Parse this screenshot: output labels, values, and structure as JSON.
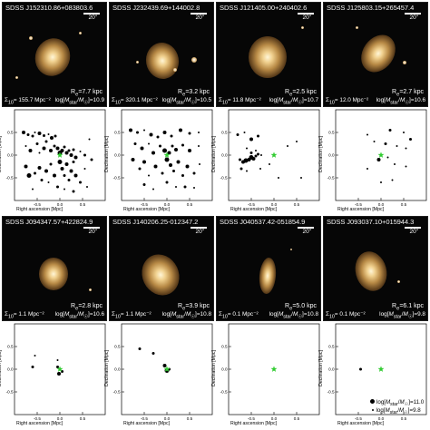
{
  "panels": [
    {
      "title": "SDSS J152310.86+083803.6",
      "scale": "20\"",
      "re": "R_e=7.7 kpc",
      "sigma": "Σ_10= 155.7 Mpc⁻²",
      "mass": "log[M_star/M_sun]=10.9",
      "neighbors": [
        [
          -0.8,
          0.5,
          2
        ],
        [
          -0.7,
          0.45,
          1.5
        ],
        [
          -0.6,
          0.42,
          1.5
        ],
        [
          -0.55,
          0.5,
          1
        ],
        [
          -0.45,
          0.48,
          2
        ],
        [
          -0.35,
          0.43,
          1.5
        ],
        [
          -0.25,
          0.46,
          1
        ],
        [
          -0.18,
          0.38,
          2
        ],
        [
          -0.1,
          0.42,
          1.5
        ],
        [
          -0.75,
          0.2,
          1
        ],
        [
          -0.65,
          0.1,
          2
        ],
        [
          -0.5,
          0.25,
          1.5
        ],
        [
          -0.45,
          0.05,
          1
        ],
        [
          -0.35,
          0.15,
          2
        ],
        [
          -0.3,
          0.3,
          1.5
        ],
        [
          -0.2,
          0.1,
          2
        ],
        [
          -0.12,
          0.2,
          1.5
        ],
        [
          -0.05,
          0.15,
          2
        ],
        [
          0.0,
          0.05,
          2.5
        ],
        [
          0.05,
          0.1,
          2
        ],
        [
          0.1,
          0.18,
          1.5
        ],
        [
          0.15,
          0.05,
          2
        ],
        [
          0.2,
          0.1,
          1.5
        ],
        [
          0.25,
          0.0,
          2
        ],
        [
          0.3,
          0.12,
          1.5
        ],
        [
          0.35,
          -0.05,
          2
        ],
        [
          0.45,
          0.08,
          1
        ],
        [
          0.55,
          0.0,
          1.5
        ],
        [
          -0.75,
          -0.25,
          2
        ],
        [
          -0.68,
          -0.45,
          2.5
        ],
        [
          -0.55,
          -0.4,
          1.5
        ],
        [
          -0.45,
          -0.28,
          2
        ],
        [
          -0.4,
          -0.55,
          1.5
        ],
        [
          -0.3,
          -0.35,
          2
        ],
        [
          -0.25,
          -0.6,
          1
        ],
        [
          -0.2,
          -0.2,
          1.5
        ],
        [
          -0.12,
          -0.45,
          2
        ],
        [
          0.0,
          -0.15,
          2.5
        ],
        [
          0.05,
          -0.3,
          2
        ],
        [
          0.1,
          -0.45,
          1.5
        ],
        [
          0.15,
          -0.2,
          2
        ],
        [
          0.2,
          -0.55,
          1.5
        ],
        [
          0.25,
          -0.35,
          2
        ],
        [
          0.3,
          -0.15,
          1.5
        ],
        [
          0.35,
          -0.45,
          2
        ],
        [
          0.45,
          -0.6,
          1.5
        ],
        [
          0.55,
          -0.3,
          1
        ],
        [
          -0.05,
          -0.7,
          1.5
        ],
        [
          0.1,
          -0.75,
          1
        ],
        [
          0.3,
          -0.8,
          1.5
        ],
        [
          0.6,
          -0.7,
          1
        ],
        [
          -0.6,
          -0.75,
          1
        ],
        [
          0.65,
          0.35,
          1
        ],
        [
          0.7,
          -0.1,
          1.5
        ]
      ]
    },
    {
      "title": "SDSS J232439.69+144002.8",
      "scale": "20\"",
      "re": "R_e=3.2 kpc",
      "sigma": "Σ_10= 320.1 Mpc⁻²",
      "mass": "log[M_star/M_sun]=10.5",
      "neighbors": [
        [
          -0.8,
          0.55,
          2
        ],
        [
          -0.65,
          0.5,
          1.5
        ],
        [
          -0.5,
          0.55,
          1
        ],
        [
          -0.35,
          0.45,
          2
        ],
        [
          -0.2,
          0.4,
          1.5
        ],
        [
          -0.05,
          0.5,
          2
        ],
        [
          0.1,
          0.42,
          1.5
        ],
        [
          0.3,
          0.55,
          2
        ],
        [
          0.5,
          0.48,
          1.5
        ],
        [
          0.7,
          0.5,
          1
        ],
        [
          -0.7,
          0.25,
          1.5
        ],
        [
          -0.55,
          0.15,
          2
        ],
        [
          -0.4,
          0.25,
          1
        ],
        [
          -0.3,
          0.05,
          2
        ],
        [
          -0.15,
          0.2,
          1.5
        ],
        [
          -0.05,
          0.1,
          2.5
        ],
        [
          0.05,
          0.05,
          2
        ],
        [
          0.12,
          0.2,
          1.5
        ],
        [
          0.2,
          0.12,
          2
        ],
        [
          0.35,
          0.22,
          1.5
        ],
        [
          0.5,
          0.1,
          2
        ],
        [
          0.7,
          0.2,
          1
        ],
        [
          -0.75,
          -0.1,
          2
        ],
        [
          -0.6,
          -0.3,
          1.5
        ],
        [
          -0.5,
          -0.15,
          2
        ],
        [
          -0.4,
          -0.45,
          1
        ],
        [
          -0.25,
          -0.25,
          2
        ],
        [
          -0.1,
          -0.4,
          1.5
        ],
        [
          0.0,
          -0.1,
          2.5
        ],
        [
          0.08,
          -0.22,
          2
        ],
        [
          0.15,
          -0.35,
          1.5
        ],
        [
          0.25,
          -0.15,
          2
        ],
        [
          0.35,
          -0.45,
          1.5
        ],
        [
          0.45,
          -0.25,
          2
        ],
        [
          0.6,
          -0.4,
          1.5
        ],
        [
          0.72,
          -0.2,
          1
        ],
        [
          -0.5,
          -0.65,
          1.5
        ],
        [
          -0.3,
          -0.75,
          1
        ],
        [
          0.0,
          -0.6,
          1.5
        ],
        [
          0.2,
          -0.7,
          1
        ],
        [
          0.4,
          -0.7,
          1.5
        ],
        [
          0.6,
          -0.72,
          1
        ]
      ]
    },
    {
      "title": "SDSS J121405.00+240402.6",
      "scale": "20\"",
      "re": "R_e=2.5 kpc",
      "sigma": "Σ_10= 11.8 Mpc⁻²",
      "mass": "log[M_star/M_sun]=10.7",
      "neighbors": [
        [
          -0.8,
          0.45,
          1.5
        ],
        [
          -0.65,
          0.5,
          1
        ],
        [
          -0.5,
          0.35,
          2
        ],
        [
          -0.35,
          0.42,
          1.5
        ],
        [
          -0.6,
          0.15,
          1
        ],
        [
          -0.5,
          0.05,
          1.5
        ],
        [
          -0.4,
          0.1,
          1
        ],
        [
          -0.75,
          -0.1,
          1.5
        ],
        [
          -0.68,
          -0.15,
          2
        ],
        [
          -0.62,
          -0.12,
          2.5
        ],
        [
          -0.55,
          -0.1,
          2
        ],
        [
          -0.5,
          -0.05,
          2.5
        ],
        [
          -0.45,
          -0.08,
          2
        ],
        [
          -0.4,
          -0.02,
          1.5
        ],
        [
          -0.35,
          0.02,
          1.5
        ],
        [
          -0.28,
          0.0,
          1
        ],
        [
          -0.72,
          -0.3,
          1.5
        ],
        [
          -0.6,
          -0.35,
          1
        ],
        [
          -0.3,
          -0.3,
          1
        ],
        [
          -0.1,
          -0.2,
          1
        ],
        [
          0.3,
          0.2,
          1
        ],
        [
          0.5,
          0.3,
          1
        ],
        [
          0.1,
          -0.5,
          1
        ],
        [
          0.6,
          -0.5,
          1
        ]
      ]
    },
    {
      "title": "SDSS J125803.15+265457.4",
      "scale": "20\"",
      "re": "R_e=2.7 kpc",
      "sigma": "Σ_10= 12.0 Mpc⁻²",
      "mass": "log[M_star/M_sun]=10.6",
      "neighbors": [
        [
          -0.3,
          0.45,
          1
        ],
        [
          0.2,
          0.55,
          1.5
        ],
        [
          0.5,
          0.5,
          1
        ],
        [
          0.65,
          0.35,
          1.5
        ],
        [
          -0.15,
          0.3,
          1
        ],
        [
          0.1,
          0.25,
          1.5
        ],
        [
          0.35,
          0.2,
          1
        ],
        [
          0.55,
          0.15,
          1
        ],
        [
          -0.05,
          -0.1,
          2
        ],
        [
          0.15,
          -0.05,
          1
        ],
        [
          0.3,
          -0.2,
          1
        ],
        [
          0.55,
          -0.25,
          1
        ],
        [
          -0.3,
          -0.3,
          1
        ],
        [
          0.25,
          -0.55,
          1
        ],
        [
          0.0,
          -0.6,
          1
        ]
      ]
    },
    {
      "title": "SDSS J094347.57+422824.9",
      "scale": "20\"",
      "re": "R_e=2.8 kpc",
      "sigma": "Σ_10= 1.1 Mpc⁻²",
      "mass": "log[M_star/M_sun]=10.6",
      "neighbors": [
        [
          -0.55,
          0.3,
          1
        ],
        [
          -0.6,
          0.05,
          1.5
        ],
        [
          -0.05,
          0.2,
          1
        ],
        [
          -0.05,
          0.05,
          1.5
        ],
        [
          0.05,
          -0.05,
          1.5
        ],
        [
          -0.02,
          -0.1,
          2
        ]
      ]
    },
    {
      "title": "SDSS J140206.25-012347.2",
      "scale": "20\"",
      "re": "R_e=3.9 kpc",
      "sigma": "Σ_10= 1.1 Mpc⁻²",
      "mass": "log[M_star/M_sun]=10.8",
      "neighbors": [
        [
          -0.6,
          0.45,
          1.5
        ],
        [
          -0.3,
          0.35,
          1.5
        ],
        [
          -0.05,
          0.08,
          2
        ],
        [
          0.0,
          -0.03,
          2.5
        ],
        [
          0.05,
          0.0,
          1.5
        ]
      ]
    },
    {
      "title": "SDSS J040537.42-051854.9",
      "scale": "20\"",
      "re": "R_e=5.0 kpc",
      "sigma": "Σ_10= 0.1 Mpc⁻²",
      "mass": "log[M_star/M_sun]=10.8",
      "neighbors": []
    },
    {
      "title": "SDSS J093037.10+015944.3",
      "scale": "20\"",
      "re": "R_e=6.1 kpc",
      "sigma": "Σ_10= 0.1 Mpc⁻²",
      "mass": "log[M_star/M_sun]=9.8",
      "neighbors": [
        [
          -0.45,
          0.0,
          1.5
        ]
      ]
    }
  ],
  "axes": {
    "xlabel": "Right ascension [Mpc]",
    "ylabel": "Declination [Mpc]",
    "xticks": [
      "-0.5",
      "0.0",
      "0.5"
    ],
    "yticks": [
      "-0.5",
      "0.0",
      "0.5"
    ]
  },
  "legend": {
    "big": "log[M_star/M_sun]=11.0",
    "small": "log[M_star/M_sun]=9.8"
  },
  "colors": {
    "marker": "#000000",
    "center": "#33cc33",
    "bg": "#060606",
    "galaxy": "#e8c98a"
  }
}
